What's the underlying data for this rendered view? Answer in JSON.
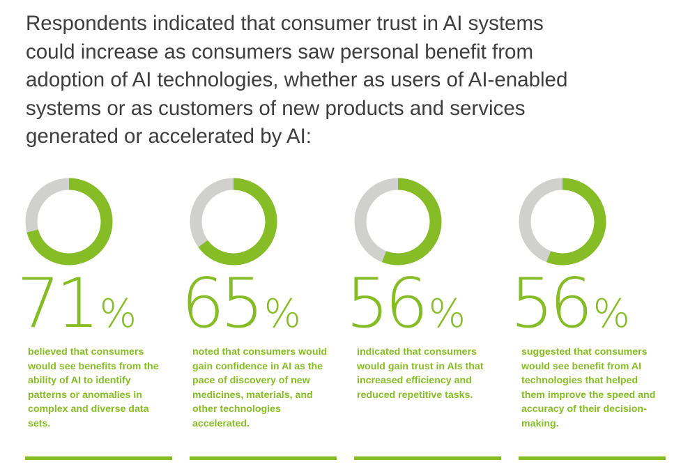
{
  "headline": "Respondents indicated that consumer trust in AI systems could increase as consumers saw personal benefit from adoption of AI technologies, whether as users of AI-enabled systems or as customers of new products and services generated or accelerated by AI:",
  "colors": {
    "accent": "#86bc25",
    "track": "#d0d0ce",
    "text": "#3d3d3d"
  },
  "chart_data": [
    {
      "type": "pie",
      "subtype": "donut",
      "values": [
        71,
        29
      ],
      "value_label": "71",
      "unit": "%",
      "caption": "believed that consumers would see benefits from the ability of AI to identify patterns or anomalies in complex and diverse data sets."
    },
    {
      "type": "pie",
      "subtype": "donut",
      "values": [
        65,
        35
      ],
      "value_label": "65",
      "unit": "%",
      "caption": "noted that consumers would gain confidence in AI as the pace of discovery of new medicines, materials, and other technologies accelerated."
    },
    {
      "type": "pie",
      "subtype": "donut",
      "values": [
        56,
        44
      ],
      "value_label": "56",
      "unit": "%",
      "caption": "indicated that consumers would gain trust in AIs that increased efficiency and reduced repetitive tasks."
    },
    {
      "type": "pie",
      "subtype": "donut",
      "values": [
        56,
        44
      ],
      "value_label": "56",
      "unit": "%",
      "caption": "suggested that consumers would see benefit from AI technologies that helped them improve the speed and accuracy of their decision-making."
    }
  ]
}
